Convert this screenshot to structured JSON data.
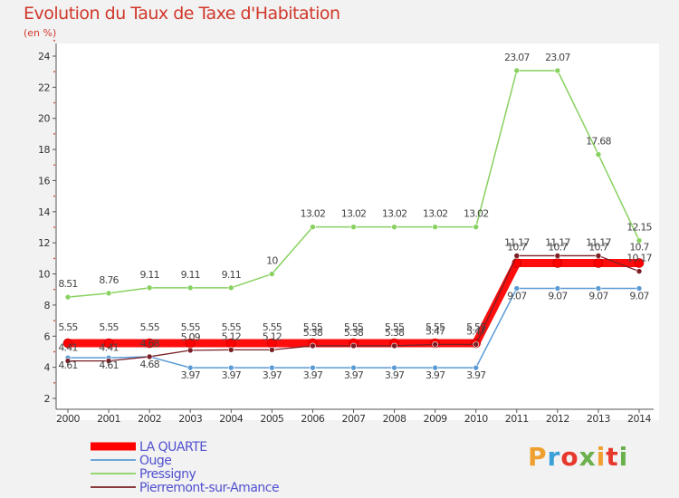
{
  "chart_data": {
    "type": "line",
    "title": "Evolution du Taux de Taxe d'Habitation",
    "subtitle": "(en %)",
    "x": [
      "2000",
      "2001",
      "2002",
      "2003",
      "2004",
      "2005",
      "2006",
      "2007",
      "2008",
      "2009",
      "2010",
      "2011",
      "2012",
      "2013",
      "2014"
    ],
    "ylim": [
      2,
      24
    ],
    "yticks": [
      2,
      4,
      6,
      8,
      10,
      12,
      14,
      16,
      18,
      20,
      22,
      24
    ],
    "grid": false,
    "legend_position": "bottom-left",
    "series": [
      {
        "name": "LA QUARTE",
        "color": "#ff0000",
        "values": [
          5.55,
          5.55,
          5.55,
          5.55,
          5.55,
          5.55,
          5.55,
          5.55,
          5.55,
          5.55,
          5.55,
          10.7,
          10.7,
          10.7,
          10.7
        ],
        "labels": [
          "5.55",
          "5.55",
          "5.55",
          "5.55",
          "5.55",
          "5.55",
          "5.55",
          "5.55",
          "5.55",
          "5.55",
          "5.55",
          "10.7",
          "10.7",
          "10.7",
          "10.7"
        ]
      },
      {
        "name": "Ouge",
        "color": "#5b9bd5",
        "values": [
          4.61,
          4.61,
          4.68,
          3.97,
          3.97,
          3.97,
          3.97,
          3.97,
          3.97,
          3.97,
          3.97,
          9.07,
          9.07,
          9.07,
          9.07
        ],
        "labels": [
          "4.61",
          "4.61",
          "4.68",
          "3.97",
          "3.97",
          "3.97",
          "3.97",
          "3.97",
          "3.97",
          "3.97",
          "3.97",
          "9.07",
          "9.07",
          "9.07",
          "9.07"
        ]
      },
      {
        "name": "Pressigny",
        "color": "#88d160",
        "values": [
          8.51,
          8.76,
          9.11,
          9.11,
          9.11,
          10,
          13.02,
          13.02,
          13.02,
          13.02,
          13.02,
          23.07,
          23.07,
          17.68,
          12.15
        ],
        "labels": [
          "8.51",
          "8.76",
          "9.11",
          "9.11",
          "9.11",
          "10",
          "13.02",
          "13.02",
          "13.02",
          "13.02",
          "13.02",
          "23.07",
          "23.07",
          "17.68",
          "12.15"
        ]
      },
      {
        "name": "Pierremont-sur-Amance",
        "color": "#7a1f25",
        "values": [
          4.41,
          4.41,
          4.68,
          5.09,
          5.12,
          5.12,
          5.38,
          5.38,
          5.38,
          5.47,
          5.47,
          11.17,
          11.17,
          11.17,
          10.17
        ],
        "labels": [
          "4.41",
          "4.41",
          "4.68",
          "5.09",
          "5.12",
          "5.12",
          "5.38",
          "5.38",
          "5.38",
          "5.47",
          "5.47",
          "11.17",
          "11.17",
          "11.17",
          "10.17"
        ]
      }
    ]
  },
  "logo": {
    "text": "Proxiti",
    "colors": [
      "#f0a030",
      "#3aa0d8",
      "#e8382d",
      "#6ab04c",
      "#f0a030",
      "#e8382d",
      "#6ab04c"
    ]
  }
}
